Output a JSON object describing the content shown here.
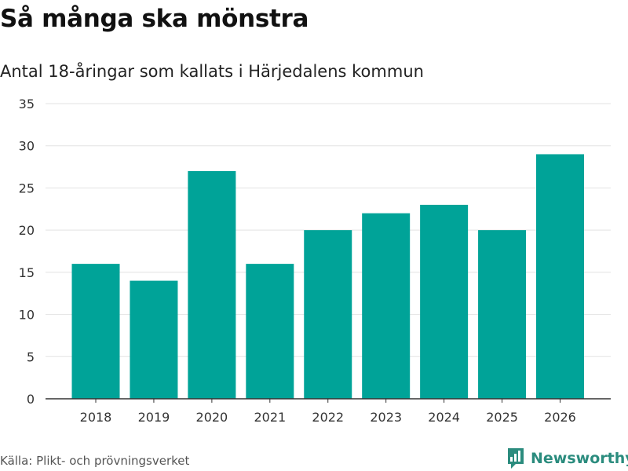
{
  "header": {
    "title": "Så många ska mönstra",
    "subtitle": "Antal 18-åringar som kallats i Härjedalens kommun"
  },
  "footer": {
    "source": "Källa: Plikt- och prövningsverket",
    "brand": "Newsworthy"
  },
  "colors": {
    "bar": "#00a398",
    "brand": "#2b8c7e"
  },
  "chart_data": {
    "type": "bar",
    "title": "Så många ska mönstra",
    "subtitle": "Antal 18-åringar som kallats i Härjedalens kommun",
    "categories": [
      "2018",
      "2019",
      "2020",
      "2021",
      "2022",
      "2023",
      "2024",
      "2025",
      "2026"
    ],
    "values": [
      16,
      14,
      27,
      16,
      20,
      22,
      23,
      20,
      29
    ],
    "ylim": [
      0,
      35
    ],
    "yticks": [
      0,
      5,
      10,
      15,
      20,
      25,
      30,
      35
    ],
    "xlabel": "",
    "ylabel": "",
    "grid": true
  }
}
